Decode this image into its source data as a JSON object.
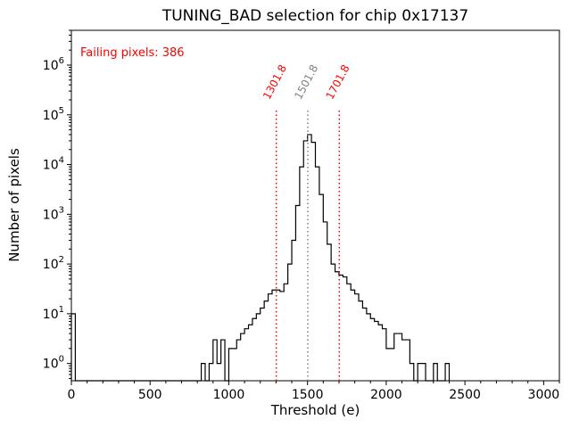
{
  "chart_data": {
    "type": "histogram",
    "title": "TUNING_BAD selection for chip 0x17137",
    "xlabel": "Threshold (e)",
    "ylabel": "Number of pixels",
    "annotation": {
      "text": "Failing pixels: 386",
      "color": "#ff0000"
    },
    "line_color": "#000000",
    "background": "#ffffff",
    "xlim": [
      0,
      3100
    ],
    "ylim": [
      0.45,
      5000000
    ],
    "yscale": "log",
    "xticks": [
      0,
      500,
      1000,
      1500,
      2000,
      2500,
      3000
    ],
    "ytick_exponents": [
      0,
      1,
      2,
      3,
      4,
      5,
      6
    ],
    "x_minor_step": 100,
    "bin_width": 25,
    "vline_top": 130000,
    "vlines": [
      {
        "x": 1301.8,
        "label": "1301.8",
        "color": "#ff0000",
        "style": "dotted"
      },
      {
        "x": 1501.8,
        "label": "1501.8",
        "color": "#808080",
        "style": "dotted"
      },
      {
        "x": 1701.8,
        "label": "1701.8",
        "color": "#ff0000",
        "style": "dotted"
      }
    ],
    "bins": [
      [
        0,
        10
      ],
      [
        825,
        1
      ],
      [
        875,
        1
      ],
      [
        900,
        3
      ],
      [
        925,
        1
      ],
      [
        950,
        3
      ],
      [
        1000,
        2
      ],
      [
        1025,
        2
      ],
      [
        1050,
        3
      ],
      [
        1075,
        4
      ],
      [
        1100,
        5
      ],
      [
        1125,
        6
      ],
      [
        1150,
        8
      ],
      [
        1175,
        10
      ],
      [
        1200,
        13
      ],
      [
        1225,
        18
      ],
      [
        1250,
        25
      ],
      [
        1275,
        30
      ],
      [
        1300,
        30
      ],
      [
        1325,
        28
      ],
      [
        1350,
        40
      ],
      [
        1375,
        100
      ],
      [
        1400,
        300
      ],
      [
        1425,
        1500
      ],
      [
        1450,
        9000
      ],
      [
        1475,
        30000
      ],
      [
        1500,
        40000
      ],
      [
        1525,
        28000
      ],
      [
        1550,
        9000
      ],
      [
        1575,
        2500
      ],
      [
        1600,
        700
      ],
      [
        1625,
        250
      ],
      [
        1650,
        100
      ],
      [
        1675,
        70
      ],
      [
        1700,
        60
      ],
      [
        1725,
        55
      ],
      [
        1750,
        40
      ],
      [
        1775,
        30
      ],
      [
        1800,
        25
      ],
      [
        1825,
        18
      ],
      [
        1850,
        13
      ],
      [
        1875,
        10
      ],
      [
        1900,
        8
      ],
      [
        1925,
        7
      ],
      [
        1950,
        6
      ],
      [
        1975,
        5
      ],
      [
        2000,
        2
      ],
      [
        2025,
        2
      ],
      [
        2050,
        4
      ],
      [
        2075,
        4
      ],
      [
        2100,
        3
      ],
      [
        2125,
        3
      ],
      [
        2150,
        1
      ],
      [
        2200,
        1
      ],
      [
        2225,
        1
      ],
      [
        2300,
        1
      ],
      [
        2375,
        1
      ]
    ]
  }
}
